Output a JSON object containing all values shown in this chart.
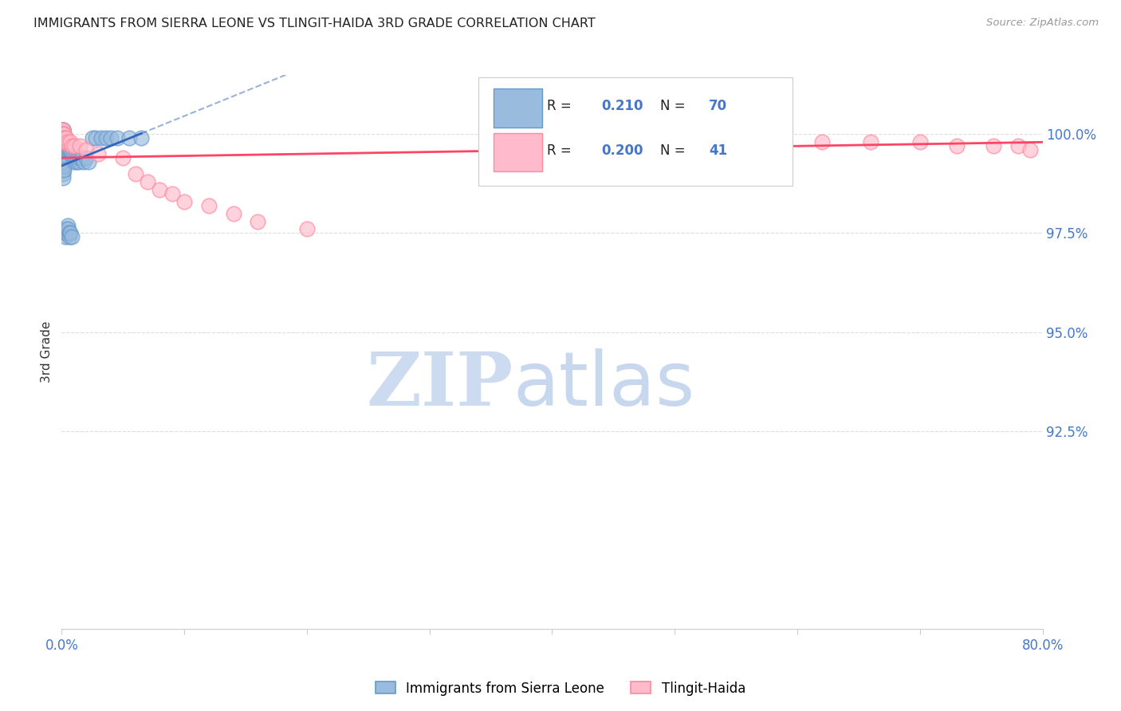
{
  "title": "IMMIGRANTS FROM SIERRA LEONE VS TLINGIT-HAIDA 3RD GRADE CORRELATION CHART",
  "source": "Source: ZipAtlas.com",
  "ylabel": "3rd Grade",
  "ytick_labels": [
    "100.0%",
    "97.5%",
    "95.0%",
    "92.5%"
  ],
  "ytick_values": [
    1.0,
    0.975,
    0.95,
    0.925
  ],
  "xlim": [
    0.0,
    0.8
  ],
  "ylim": [
    0.875,
    1.015
  ],
  "blue_label": "Immigrants from Sierra Leone",
  "pink_label": "Tlingit-Haida",
  "blue_R": 0.21,
  "blue_N": 70,
  "pink_R": 0.2,
  "pink_N": 41,
  "blue_color": "#6699CC",
  "blue_fill": "#99BBDD",
  "pink_color": "#FF8899",
  "pink_fill": "#FFBBCC",
  "trend_blue_color": "#3366BB",
  "trend_pink_color": "#FF4466",
  "watermark_zip_color": "#C8D8F0",
  "watermark_atlas_color": "#B0C8E8",
  "background_color": "#FFFFFF",
  "title_color": "#222222",
  "source_color": "#999999",
  "axis_label_color": "#4477CC",
  "grid_color": "#DDDDDD",
  "legend_R_color": "#4477CC",
  "legend_N_color": "#000000",
  "blue_scatter_x": [
    0.001,
    0.001,
    0.001,
    0.001,
    0.001,
    0.001,
    0.001,
    0.001,
    0.001,
    0.001,
    0.001,
    0.001,
    0.001,
    0.001,
    0.001,
    0.001,
    0.001,
    0.001,
    0.001,
    0.001,
    0.002,
    0.002,
    0.002,
    0.002,
    0.002,
    0.002,
    0.002,
    0.002,
    0.002,
    0.002,
    0.003,
    0.003,
    0.003,
    0.003,
    0.003,
    0.003,
    0.004,
    0.004,
    0.004,
    0.004,
    0.005,
    0.005,
    0.005,
    0.005,
    0.006,
    0.006,
    0.006,
    0.007,
    0.007,
    0.008,
    0.008,
    0.009,
    0.01,
    0.011,
    0.012,
    0.013,
    0.014,
    0.015,
    0.017,
    0.018,
    0.02,
    0.022,
    0.025,
    0.028,
    0.032,
    0.036,
    0.04,
    0.045,
    0.055,
    0.065
  ],
  "blue_scatter_y": [
    1.001,
    1.001,
    1.001,
    1.0,
    1.0,
    0.999,
    0.999,
    0.998,
    0.998,
    0.997,
    0.997,
    0.996,
    0.996,
    0.995,
    0.994,
    0.993,
    0.992,
    0.991,
    0.99,
    0.989,
    1.0,
    0.999,
    0.998,
    0.997,
    0.996,
    0.995,
    0.994,
    0.993,
    0.992,
    0.991,
    0.999,
    0.998,
    0.997,
    0.996,
    0.975,
    0.974,
    0.998,
    0.997,
    0.976,
    0.975,
    0.997,
    0.996,
    0.977,
    0.976,
    0.996,
    0.975,
    0.974,
    0.996,
    0.975,
    0.995,
    0.974,
    0.994,
    0.993,
    0.994,
    0.993,
    0.994,
    0.993,
    0.994,
    0.994,
    0.993,
    0.994,
    0.993,
    0.999,
    0.999,
    0.999,
    0.999,
    0.999,
    0.999,
    0.999,
    0.999
  ],
  "pink_scatter_x": [
    0.001,
    0.001,
    0.001,
    0.001,
    0.001,
    0.001,
    0.001,
    0.001,
    0.001,
    0.001,
    0.002,
    0.002,
    0.002,
    0.003,
    0.003,
    0.004,
    0.005,
    0.007,
    0.008,
    0.01,
    0.015,
    0.02,
    0.03,
    0.05,
    0.06,
    0.07,
    0.08,
    0.09,
    0.1,
    0.12,
    0.14,
    0.16,
    0.2,
    0.58,
    0.62,
    0.66,
    0.7,
    0.73,
    0.76,
    0.78,
    0.79
  ],
  "pink_scatter_y": [
    1.001,
    1.001,
    1.0,
    1.0,
    1.0,
    0.999,
    0.999,
    0.999,
    0.998,
    0.998,
    1.0,
    0.999,
    0.998,
    0.999,
    0.998,
    0.999,
    0.998,
    0.998,
    0.997,
    0.997,
    0.997,
    0.996,
    0.995,
    0.994,
    0.99,
    0.988,
    0.986,
    0.985,
    0.983,
    0.982,
    0.98,
    0.978,
    0.976,
    0.999,
    0.998,
    0.998,
    0.998,
    0.997,
    0.997,
    0.997,
    0.996
  ]
}
